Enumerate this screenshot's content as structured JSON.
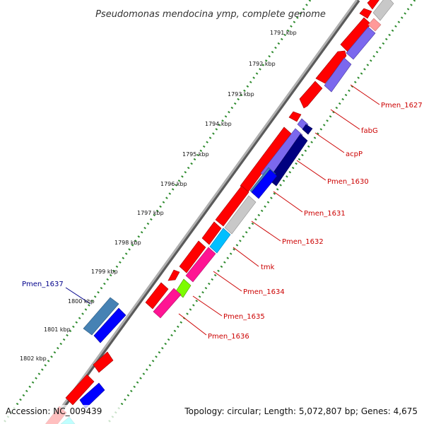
{
  "title": "Pseudomonas mendocina ymp, complete genome",
  "footer": {
    "accession": "Accession: NC_009439",
    "summary": "Topology: circular; Length: 5,072,807 bp; Genes: 4,675"
  },
  "colors": {
    "backbone": "#8a8a8a",
    "tick_dots": "#2e8b2e",
    "label_red": "#cc0000",
    "label_blue": "#00008b",
    "cds_forward": "#ff0000",
    "gray_feature": "#c0c0c0",
    "purple_feature": "#7b68ee",
    "navy_feature": "#000080",
    "blue_feature": "#0000ff",
    "steel_feature": "#4682b4",
    "cyan_feature": "#00bfff",
    "pink_feature": "#ff1493",
    "green_feature": "#7cfc00"
  },
  "kbp_ticks": [
    {
      "label": "1791 kbp"
    },
    {
      "label": "1792 kbp"
    },
    {
      "label": "1793 kbp"
    },
    {
      "label": "1794 kbp"
    },
    {
      "label": "1795 kbp"
    },
    {
      "label": "1796 kbp"
    },
    {
      "label": "1797 kbp"
    },
    {
      "label": "1798 kbp"
    },
    {
      "label": "1799 kbp"
    },
    {
      "label": "1800 kbp"
    },
    {
      "label": "1801 kbp"
    },
    {
      "label": "1802 kbp"
    }
  ],
  "gene_labels": [
    {
      "text": "Pmen_1627"
    },
    {
      "text": "fabG"
    },
    {
      "text": "acpP"
    },
    {
      "text": "Pmen_1630"
    },
    {
      "text": "Pmen_1631"
    },
    {
      "text": "Pmen_1632"
    },
    {
      "text": "tmk"
    },
    {
      "text": "Pmen_1634"
    },
    {
      "text": "Pmen_1635"
    },
    {
      "text": "Pmen_1636"
    },
    {
      "text": "Pmen_1637"
    }
  ]
}
